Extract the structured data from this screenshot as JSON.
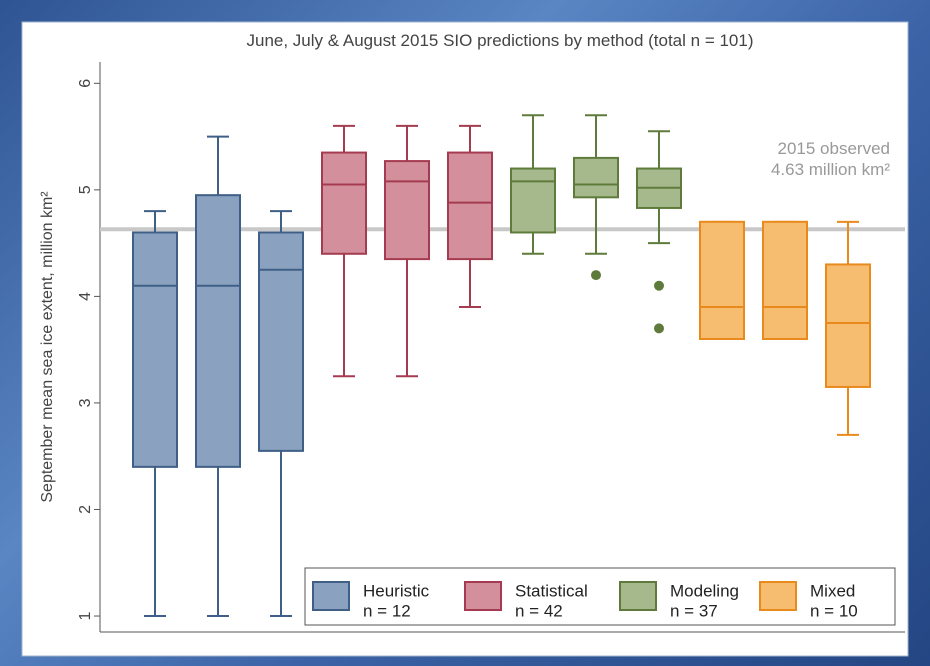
{
  "chart_data": {
    "type": "box",
    "title": "June, July & August 2015 SIO predictions by method (total n = 101)",
    "y_label": "September mean sea ice extent, million km²",
    "ylim": [
      0.85,
      6.2
    ],
    "yticks": [
      1,
      2,
      3,
      4,
      5,
      6
    ],
    "reference": {
      "value": 4.63,
      "label": [
        "2015 observed",
        "4.63 million km²"
      ],
      "color": "#c8c8c8"
    },
    "series": [
      {
        "name": "Heuristic",
        "note": "n = 12",
        "color": "#8aa2c0",
        "edge": "#3f5f86",
        "boxes": [
          {
            "min": 1,
            "q1": 2.4,
            "median": 4.1,
            "q3": 4.6,
            "max": 4.8,
            "outliers": []
          },
          {
            "min": 1,
            "q1": 2.4,
            "median": 4.1,
            "q3": 4.95,
            "max": 5.5,
            "outliers": []
          },
          {
            "min": 1,
            "q1": 2.55,
            "median": 4.25,
            "q3": 4.6,
            "max": 4.8,
            "outliers": []
          }
        ]
      },
      {
        "name": "Statistical",
        "note": "n = 42",
        "color": "#d3909c",
        "edge": "#a53b50",
        "boxes": [
          {
            "min": 3.25,
            "q1": 4.4,
            "median": 5.05,
            "q3": 5.35,
            "max": 5.6,
            "outliers": []
          },
          {
            "min": 3.25,
            "q1": 4.35,
            "median": 5.08,
            "q3": 5.27,
            "max": 5.6,
            "outliers": []
          },
          {
            "min": 3.9,
            "q1": 4.35,
            "median": 4.88,
            "q3": 5.35,
            "max": 5.6,
            "outliers": []
          }
        ]
      },
      {
        "name": "Modeling",
        "note": "n = 37",
        "color": "#a6b98c",
        "edge": "#5e7b3b",
        "boxes": [
          {
            "min": 4.4,
            "q1": 4.6,
            "median": 5.08,
            "q3": 5.2,
            "max": 5.7,
            "outliers": []
          },
          {
            "min": 4.4,
            "q1": 4.93,
            "median": 5.05,
            "q3": 5.3,
            "max": 5.7,
            "outliers": [
              4.2
            ]
          },
          {
            "min": 4.5,
            "q1": 4.83,
            "median": 5.02,
            "q3": 5.2,
            "max": 5.55,
            "outliers": [
              4.1,
              3.7
            ]
          }
        ]
      },
      {
        "name": "Mixed",
        "note": "n = 10",
        "color": "#f6bc70",
        "edge": "#e98b1c",
        "boxes": [
          {
            "min": 3.6,
            "q1": 3.6,
            "median": 3.9,
            "q3": 4.7,
            "max": 4.7,
            "outliers": []
          },
          {
            "min": 3.6,
            "q1": 3.6,
            "median": 3.9,
            "q3": 4.7,
            "max": 4.7,
            "outliers": []
          },
          {
            "min": 2.7,
            "q1": 3.15,
            "median": 3.75,
            "q3": 4.3,
            "max": 4.7,
            "outliers": []
          }
        ]
      }
    ]
  }
}
